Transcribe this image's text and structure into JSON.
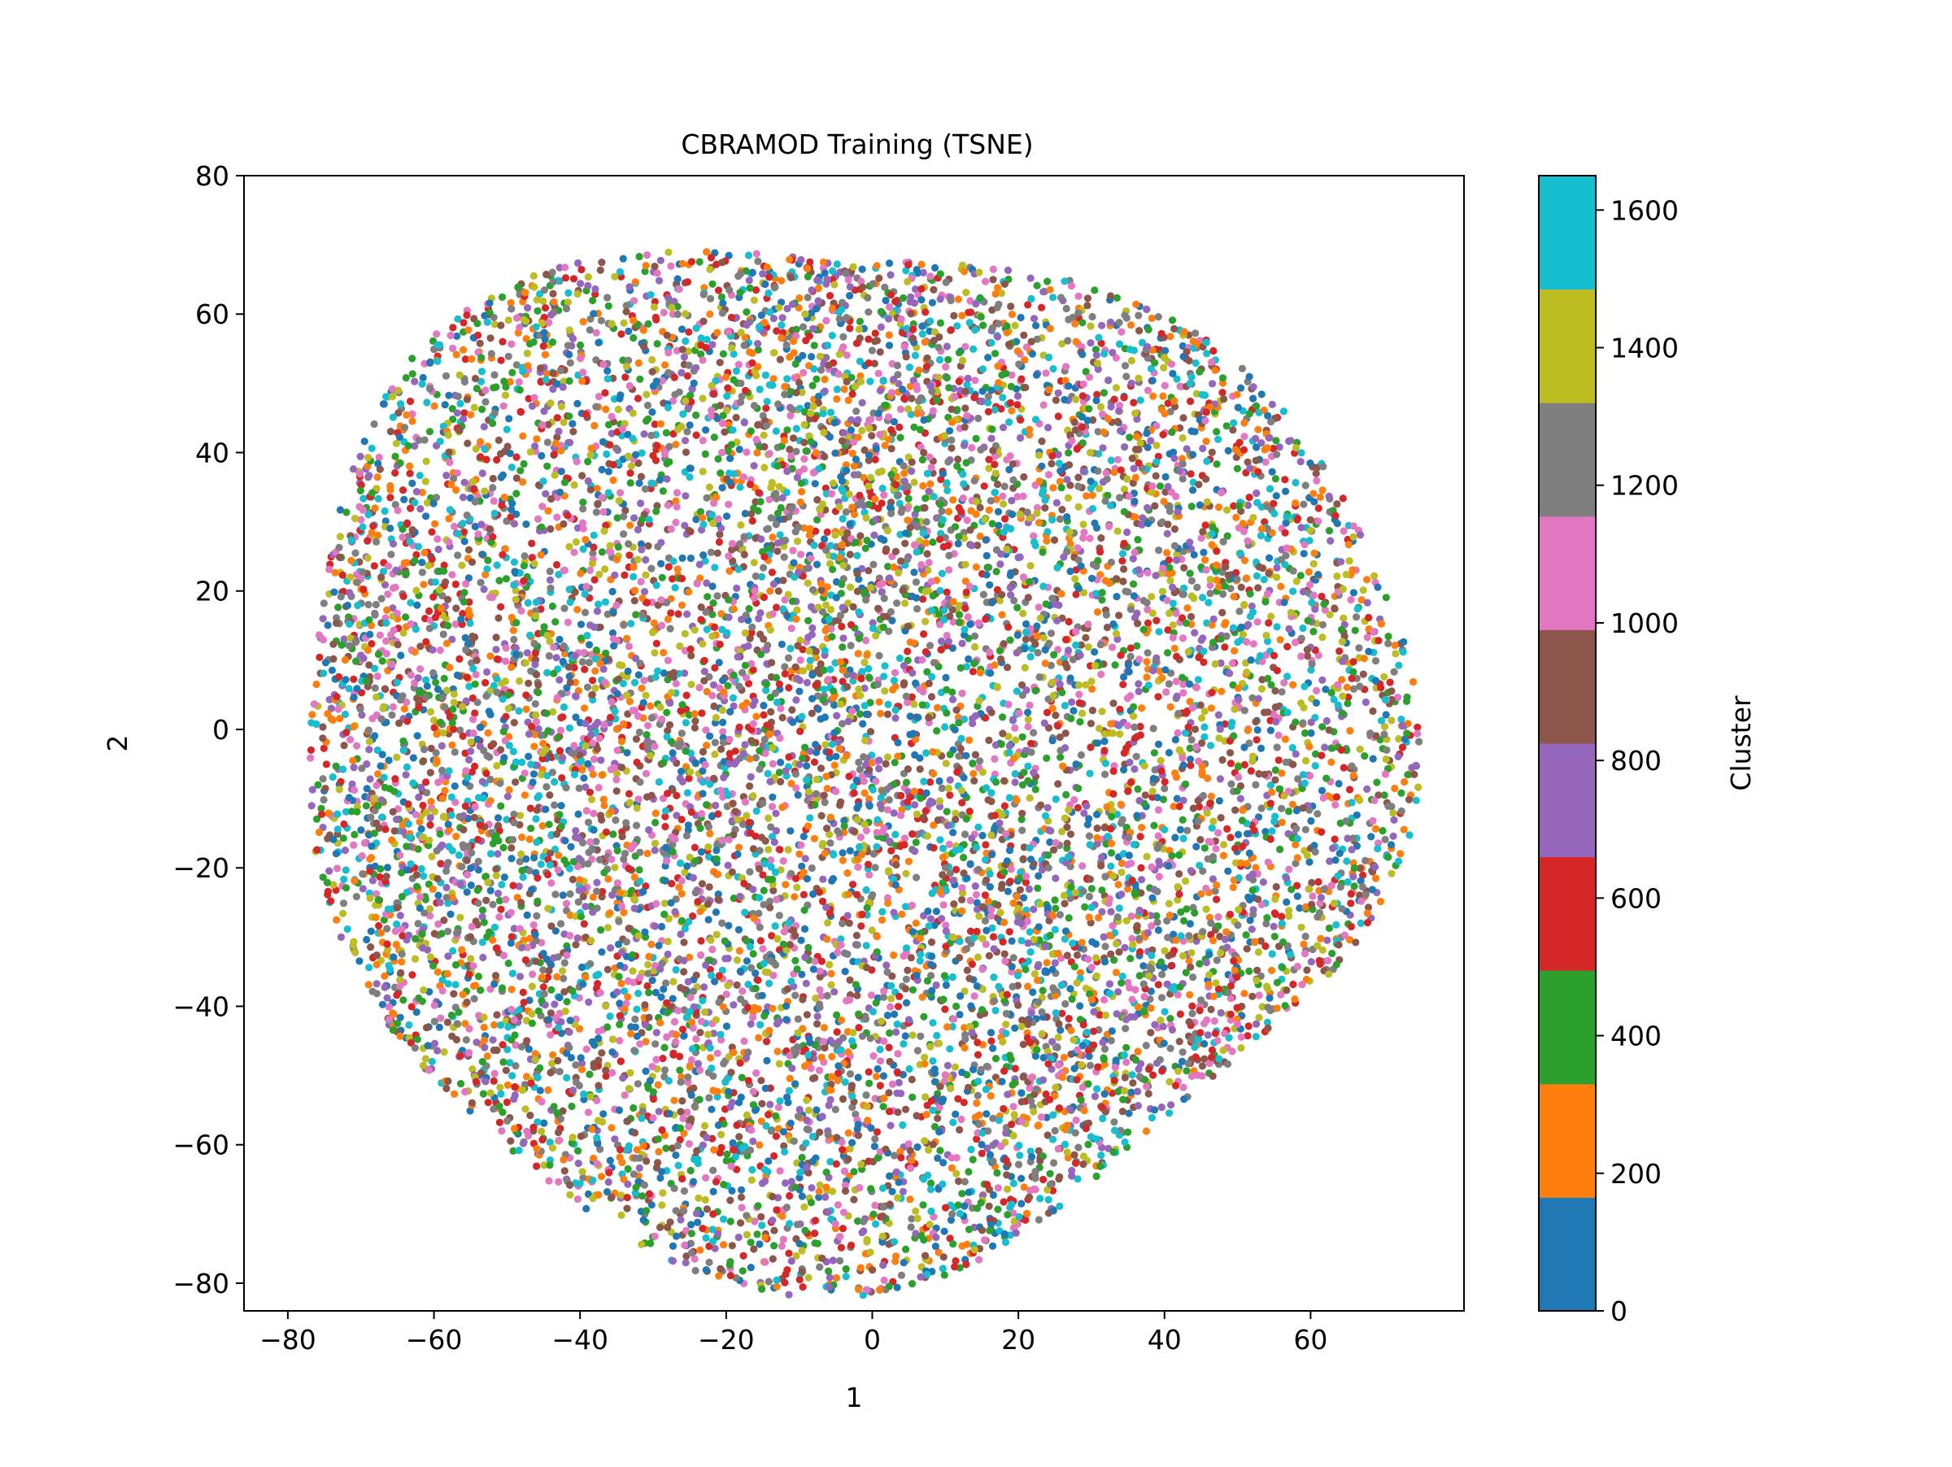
{
  "chart_data": {
    "type": "scatter",
    "title": "CBRAMOD Training (TSNE)",
    "xlabel": "1",
    "ylabel": "2",
    "xlim": [
      -86,
      81
    ],
    "ylim": [
      -84,
      80
    ],
    "xticks": [
      {
        "value": -80,
        "label": "−80"
      },
      {
        "value": -60,
        "label": "−60"
      },
      {
        "value": -40,
        "label": "−40"
      },
      {
        "value": -20,
        "label": "−20"
      },
      {
        "value": 0,
        "label": "0"
      },
      {
        "value": 20,
        "label": "20"
      },
      {
        "value": 40,
        "label": "40"
      },
      {
        "value": 60,
        "label": "60"
      }
    ],
    "yticks": [
      {
        "value": -80,
        "label": "−80"
      },
      {
        "value": -60,
        "label": "−60"
      },
      {
        "value": -40,
        "label": "−40"
      },
      {
        "value": -20,
        "label": "−20"
      },
      {
        "value": 0,
        "label": "0"
      },
      {
        "value": 20,
        "label": "20"
      },
      {
        "value": 40,
        "label": "40"
      },
      {
        "value": 60,
        "label": "60"
      },
      {
        "value": 80,
        "label": "80"
      }
    ],
    "grid": false,
    "point_cloud": {
      "approx_center": [
        0,
        -2
      ],
      "approx_x_extent": [
        -80,
        72
      ],
      "approx_y_extent": [
        -77,
        73
      ],
      "note": "dense t-SNE embedding; all clusters intermixed"
    },
    "colorbar": {
      "label": "Cluster",
      "range": [
        0,
        1650
      ],
      "ticks": [
        {
          "value": 0,
          "label": "0"
        },
        {
          "value": 200,
          "label": "200"
        },
        {
          "value": 400,
          "label": "400"
        },
        {
          "value": 600,
          "label": "600"
        },
        {
          "value": 800,
          "label": "800"
        },
        {
          "value": 1000,
          "label": "1000"
        },
        {
          "value": 1200,
          "label": "1200"
        },
        {
          "value": 1400,
          "label": "1400"
        },
        {
          "value": 1600,
          "label": "1600"
        }
      ],
      "colors": [
        "#1f77b4",
        "#ff7f0e",
        "#2ca02c",
        "#d62728",
        "#9467bd",
        "#8c564b",
        "#e377c2",
        "#7f7f7f",
        "#bcbd22",
        "#17becf"
      ]
    }
  }
}
